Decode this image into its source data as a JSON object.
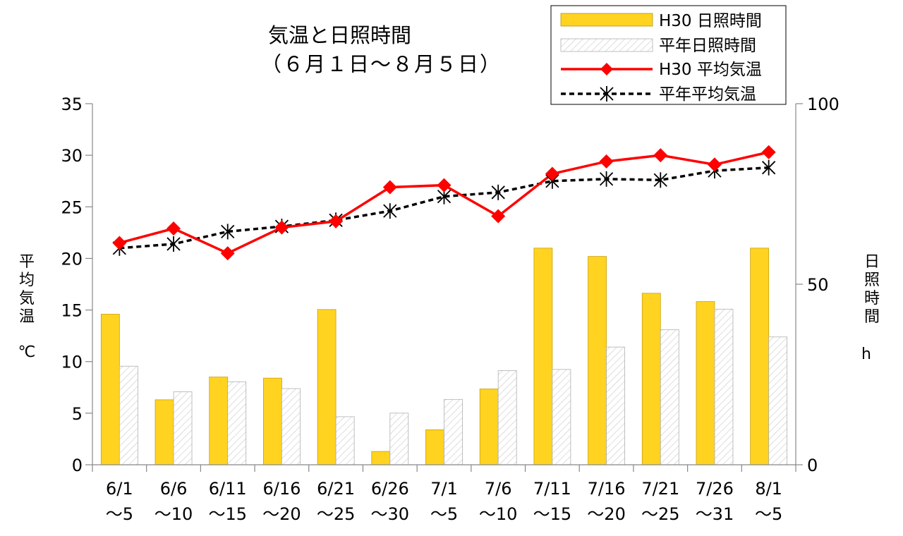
{
  "chart_data": {
    "type": "bar",
    "title": "気温と日照時間",
    "subtitle": "（６月１日～８月５日）",
    "categories": [
      [
        "6/1",
        "～5"
      ],
      [
        "6/6",
        "～10"
      ],
      [
        "6/11",
        "～15"
      ],
      [
        "6/16",
        "～20"
      ],
      [
        "6/21",
        "～25"
      ],
      [
        "6/26",
        "～30"
      ],
      [
        "7/1",
        "～5"
      ],
      [
        "7/6",
        "～10"
      ],
      [
        "7/11",
        "～15"
      ],
      [
        "7/16",
        "～20"
      ],
      [
        "7/21",
        "～25"
      ],
      [
        "7/26",
        "～31"
      ],
      [
        "8/1",
        "～5"
      ]
    ],
    "y_left": {
      "label": [
        "平",
        "均",
        "気",
        "温"
      ],
      "unit": "℃",
      "min": 0,
      "max": 35,
      "ticks": [
        0,
        5,
        10,
        15,
        20,
        25,
        30,
        35
      ]
    },
    "y_right": {
      "label": [
        "日",
        "照",
        "時",
        "間"
      ],
      "unit": "h",
      "min": 0,
      "max": 100,
      "ticks": [
        0,
        50,
        100
      ]
    },
    "series": [
      {
        "name": "H30 日照時間",
        "type": "bar",
        "axis": "right",
        "color": "#FFD320",
        "values": [
          41.7,
          18.0,
          24.3,
          24.0,
          43.0,
          3.7,
          9.7,
          21.0,
          60.0,
          57.7,
          47.5,
          45.2,
          60.0
        ]
      },
      {
        "name": "平年日照時間",
        "type": "bar",
        "axis": "right",
        "pattern": "hatched",
        "values": [
          27.3,
          20.2,
          23.0,
          21.1,
          13.3,
          14.3,
          18.1,
          26.1,
          26.4,
          32.6,
          37.4,
          43.1,
          35.4
        ]
      },
      {
        "name": "H30 平均気温",
        "type": "line",
        "axis": "left",
        "color": "#FF0000",
        "marker": "diamond",
        "values": [
          21.5,
          22.9,
          20.5,
          23.0,
          23.6,
          26.9,
          27.1,
          24.1,
          28.2,
          29.4,
          30.0,
          29.1,
          30.3
        ]
      },
      {
        "name": "平年平均気温",
        "type": "line",
        "axis": "left",
        "color": "#000000",
        "style": "dashed",
        "marker": "asterisk",
        "values": [
          21.0,
          21.4,
          22.6,
          23.1,
          23.7,
          24.6,
          26.0,
          26.4,
          27.5,
          27.7,
          27.6,
          28.5,
          28.8
        ]
      }
    ],
    "legend_position": "top-right",
    "grid": false
  }
}
